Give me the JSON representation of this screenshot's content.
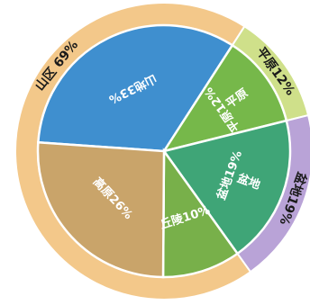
{
  "chart_data": {
    "type": "pie",
    "title": "",
    "inner_slices": [
      {
        "label": "山地33%",
        "value": 33,
        "color": "#3f8fcf"
      },
      {
        "label": "平原12%",
        "value": 12,
        "color": "#76b84a"
      },
      {
        "label": "盆地19%",
        "value": 19,
        "color": "#3fa577"
      },
      {
        "label": "丘陵10%",
        "value": 10,
        "color": "#78b04a"
      },
      {
        "label": "高原26%",
        "value": 26,
        "color": "#c9a46a"
      }
    ],
    "outer_groups": [
      {
        "label": "山区 69%",
        "value": 69,
        "color": "#f3c88a"
      },
      {
        "label": "平原12%",
        "value": 12,
        "color": "#cfe08a"
      },
      {
        "label": "盆地19%",
        "value": 19,
        "color": "#b9a3d7"
      }
    ],
    "inner_extra_labels": [
      {
        "text": "平原",
        "slice": 1
      },
      {
        "text": "盆地",
        "slice": 2
      }
    ]
  }
}
